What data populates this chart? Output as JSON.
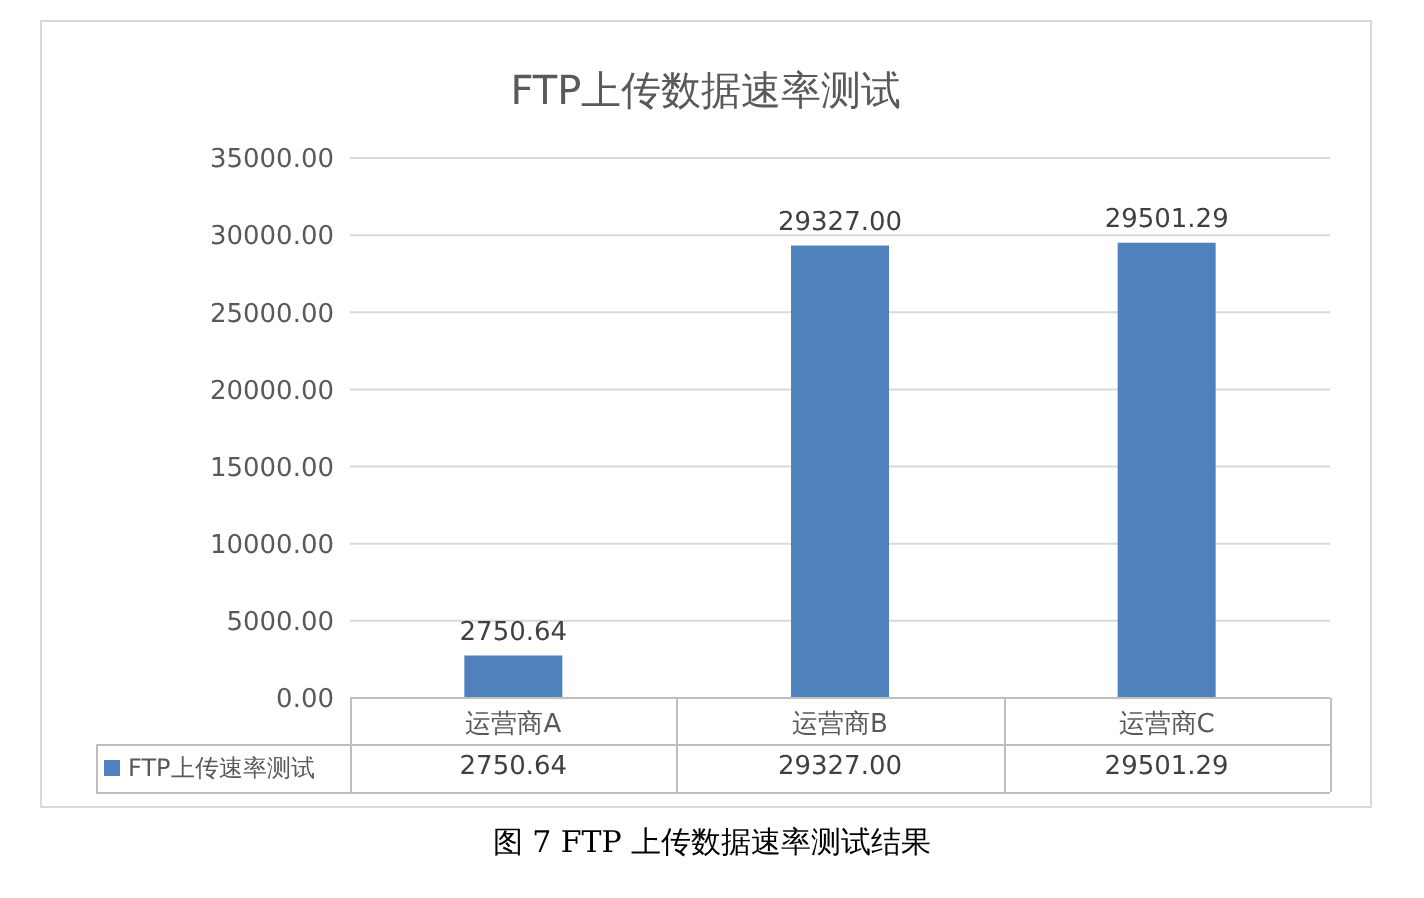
{
  "chart_data": {
    "type": "bar",
    "title": "FTP上传数据速率测试",
    "categories": [
      "运营商A",
      "运营商B",
      "运营商C"
    ],
    "series": [
      {
        "name": "FTP上传速率测试",
        "color": "#4f81bd",
        "values": [
          2750.64,
          29327.0,
          29501.29
        ],
        "value_labels": [
          "2750.64",
          "29327.00",
          "29501.29"
        ]
      }
    ],
    "ylim": [
      0,
      35000
    ],
    "yticks": [
      {
        "value": 0,
        "label": "0.00"
      },
      {
        "value": 5000,
        "label": "5000.00"
      },
      {
        "value": 10000,
        "label": "10000.00"
      },
      {
        "value": 15000,
        "label": "15000.00"
      },
      {
        "value": 20000,
        "label": "20000.00"
      },
      {
        "value": 25000,
        "label": "25000.00"
      },
      {
        "value": 30000,
        "label": "30000.00"
      },
      {
        "value": 35000,
        "label": "35000.00"
      }
    ],
    "grid": "y",
    "legend": "bottom",
    "annotations": [
      "图 7 FTP 上传数据速率测试结果"
    ]
  }
}
